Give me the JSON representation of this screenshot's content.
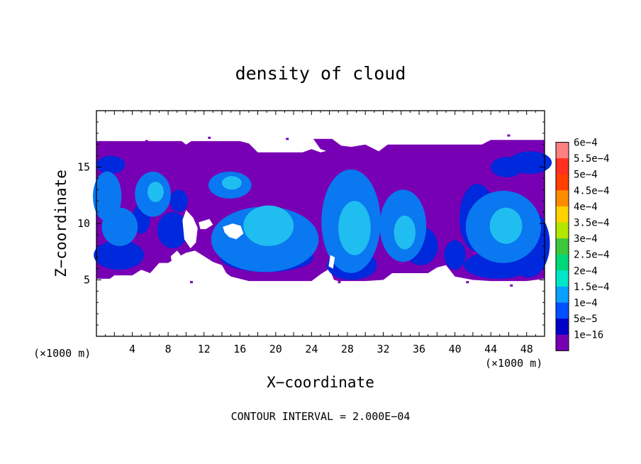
{
  "chart_data": {
    "type": "heatmap",
    "title": "density of cloud",
    "xlabel": "X−coordinate",
    "ylabel": "Z−coordinate",
    "x_unit_left": "(×1000 m)",
    "x_unit_right": "(×1000 m)",
    "footer": "CONTOUR INTERVAL = 2.000E−04",
    "xlim": [
      0,
      50
    ],
    "ylim": [
      0,
      20
    ],
    "x_ticks": [
      4,
      8,
      12,
      16,
      20,
      24,
      28,
      32,
      36,
      40,
      44,
      48
    ],
    "y_ticks": [
      5,
      10,
      15
    ],
    "colorbar": {
      "labels": [
        "6e−4",
        "5.5e−4",
        "5e−4",
        "4.5e−4",
        "4e−4",
        "3.5e−4",
        "3e−4",
        "2.5e−4",
        "2e−4",
        "1.5e−4",
        "1e−4",
        "5e−5",
        "1e−16"
      ],
      "colors": [
        "#ff8080",
        "#ff3020",
        "#ff4000",
        "#ff8c00",
        "#ffd200",
        "#b4e600",
        "#3cc83c",
        "#00d878",
        "#00e6c8",
        "#0aa0ff",
        "#0050ff",
        "#0000c8",
        "#7800b4"
      ]
    },
    "fill_levels": [
      5e-05,
      0.0001,
      0.00015
    ],
    "fill_colors": [
      "#7800b4",
      "#3010c8",
      "#0028dc",
      "#0a78f0",
      "#20bef0"
    ],
    "cloud_top": [
      [
        0,
        17.3
      ],
      [
        3,
        17.3
      ],
      [
        7,
        17.3
      ],
      [
        9.5,
        17.3
      ],
      [
        10,
        17.0
      ],
      [
        10.6,
        17.3
      ],
      [
        16,
        17.3
      ],
      [
        17,
        17.1
      ],
      [
        18,
        16.3
      ],
      [
        23,
        16.3
      ],
      [
        24,
        16.6
      ],
      [
        25,
        16.3
      ],
      [
        26,
        16.5
      ],
      [
        27,
        16.2
      ],
      [
        28.5,
        16.8
      ],
      [
        30,
        17.0
      ],
      [
        31.5,
        16.4
      ],
      [
        32.5,
        17.0
      ],
      [
        37,
        17.0
      ],
      [
        41,
        17.0
      ],
      [
        43,
        17.0
      ],
      [
        44,
        17.4
      ],
      [
        50,
        17.4
      ]
    ],
    "cloud_bottom": [
      [
        0,
        5.1
      ],
      [
        1.5,
        5.1
      ],
      [
        2,
        5.4
      ],
      [
        4,
        5.4
      ],
      [
        5,
        5.9
      ],
      [
        6,
        5.6
      ],
      [
        7,
        6.5
      ],
      [
        8,
        6.5
      ],
      [
        9,
        7.0
      ],
      [
        10,
        7.4
      ],
      [
        11,
        7.6
      ],
      [
        12,
        7.1
      ],
      [
        13,
        6.6
      ],
      [
        14,
        6.3
      ],
      [
        14.5,
        5.6
      ],
      [
        15,
        5.3
      ],
      [
        16,
        5.1
      ],
      [
        17,
        4.9
      ],
      [
        20,
        4.9
      ],
      [
        24,
        4.9
      ],
      [
        25,
        5.5
      ],
      [
        26,
        6.0
      ],
      [
        26.5,
        5.0
      ],
      [
        27,
        4.9
      ],
      [
        30,
        4.9
      ],
      [
        32,
        5.0
      ],
      [
        33,
        5.6
      ],
      [
        35,
        5.6
      ],
      [
        37,
        5.6
      ],
      [
        38,
        6.1
      ],
      [
        39,
        6.3
      ],
      [
        40,
        5.3
      ],
      [
        42,
        5.0
      ],
      [
        44,
        4.9
      ],
      [
        46,
        4.9
      ],
      [
        48,
        4.9
      ],
      [
        50,
        5.1
      ]
    ],
    "cloud_top_patches": [
      {
        "points": [
          [
            24.2,
            17.5
          ],
          [
            26.3,
            17.5
          ],
          [
            27.3,
            16.9
          ],
          [
            30.4,
            16.6
          ],
          [
            31.3,
            16.0
          ],
          [
            29.5,
            15.7
          ],
          [
            26.5,
            16.2
          ],
          [
            25.0,
            16.6
          ]
        ]
      }
    ],
    "holes": [
      {
        "points": [
          [
            10.0,
            11.2
          ],
          [
            10.8,
            10.5
          ],
          [
            11.3,
            9.6
          ],
          [
            11.1,
            8.3
          ],
          [
            10.5,
            7.8
          ],
          [
            9.8,
            8.6
          ],
          [
            9.6,
            10.3
          ]
        ]
      },
      {
        "points": [
          [
            11.4,
            10.1
          ],
          [
            12.6,
            10.4
          ],
          [
            13.0,
            9.9
          ],
          [
            12.2,
            9.5
          ],
          [
            11.6,
            9.5
          ]
        ]
      },
      {
        "points": [
          [
            14.1,
            9.7
          ],
          [
            15.2,
            10.0
          ],
          [
            16.1,
            9.8
          ],
          [
            16.4,
            9.1
          ],
          [
            15.6,
            8.6
          ],
          [
            14.8,
            8.8
          ],
          [
            14.3,
            9.2
          ]
        ]
      },
      {
        "points": [
          [
            8.3,
            7.1
          ],
          [
            9.0,
            7.6
          ],
          [
            9.4,
            7.2
          ],
          [
            9.0,
            6.6
          ],
          [
            8.4,
            6.6
          ]
        ]
      },
      {
        "points": [
          [
            26.1,
            7.2
          ],
          [
            26.6,
            7.0
          ],
          [
            26.4,
            6.0
          ],
          [
            25.9,
            6.2
          ]
        ]
      }
    ],
    "blobs": [
      {
        "x": 18.8,
        "z": 8.6,
        "rx": 6.0,
        "rz": 2.9,
        "val": 0.00012,
        "rot": 0
      },
      {
        "x": 19.2,
        "z": 9.8,
        "rx": 2.8,
        "rz": 1.8,
        "val": 0.00018,
        "rot": 0
      },
      {
        "x": 19.0,
        "z": 7.0,
        "rx": 5.2,
        "rz": 1.3,
        "val": 9e-05,
        "rot": 0
      },
      {
        "x": 28.4,
        "z": 10.2,
        "rx": 3.3,
        "rz": 4.6,
        "val": 0.00013,
        "rot": 0
      },
      {
        "x": 28.8,
        "z": 9.6,
        "rx": 1.8,
        "rz": 2.4,
        "val": 0.00019,
        "rot": 0
      },
      {
        "x": 28.5,
        "z": 6.3,
        "rx": 2.8,
        "rz": 1.3,
        "val": 8e-05,
        "rot": 0
      },
      {
        "x": 34.2,
        "z": 9.8,
        "rx": 2.6,
        "rz": 3.2,
        "val": 0.00012,
        "rot": 0
      },
      {
        "x": 34.4,
        "z": 9.2,
        "rx": 1.2,
        "rz": 1.5,
        "val": 0.00016,
        "rot": 0
      },
      {
        "x": 36.2,
        "z": 8.0,
        "rx": 1.9,
        "rz": 1.7,
        "val": 8e-05,
        "rot": 0
      },
      {
        "x": 45.4,
        "z": 9.7,
        "rx": 4.2,
        "rz": 3.2,
        "val": 0.00013,
        "rot": 0
      },
      {
        "x": 45.7,
        "z": 9.8,
        "rx": 1.8,
        "rz": 1.6,
        "val": 0.00019,
        "rot": 0
      },
      {
        "x": 48.2,
        "z": 8.2,
        "rx": 2.4,
        "rz": 3.0,
        "val": 9e-05,
        "rot": 0
      },
      {
        "x": 42.5,
        "z": 10.5,
        "rx": 2.0,
        "rz": 3.0,
        "val": 8e-05,
        "rot": 0
      },
      {
        "x": 40.0,
        "z": 7.2,
        "rx": 1.2,
        "rz": 1.3,
        "val": 7e-05,
        "rot": 0
      },
      {
        "x": 44.8,
        "z": 6.3,
        "rx": 3.8,
        "rz": 1.2,
        "val": 8e-05,
        "rot": 0
      },
      {
        "x": 48.4,
        "z": 15.4,
        "rx": 2.4,
        "rz": 1.0,
        "val": 8e-05,
        "rot": 0
      },
      {
        "x": 45.8,
        "z": 15.0,
        "rx": 1.8,
        "rz": 0.9,
        "val": 7e-05,
        "rot": 0
      },
      {
        "x": 14.9,
        "z": 13.4,
        "rx": 2.4,
        "rz": 1.2,
        "val": 0.0001,
        "rot": 0
      },
      {
        "x": 15.1,
        "z": 13.6,
        "rx": 1.1,
        "rz": 0.6,
        "val": 0.00015,
        "rot": 0
      },
      {
        "x": 1.2,
        "z": 12.4,
        "rx": 1.6,
        "rz": 2.2,
        "val": 0.0001,
        "rot": 0
      },
      {
        "x": 2.6,
        "z": 9.7,
        "rx": 2.0,
        "rz": 1.7,
        "val": 0.00011,
        "rot": 0
      },
      {
        "x": 6.3,
        "z": 12.6,
        "rx": 2.0,
        "rz": 2.0,
        "val": 0.00011,
        "rot": 0
      },
      {
        "x": 6.6,
        "z": 12.8,
        "rx": 0.9,
        "rz": 0.9,
        "val": 0.00016,
        "rot": 0
      },
      {
        "x": 8.5,
        "z": 9.4,
        "rx": 1.7,
        "rz": 1.6,
        "val": 9e-05,
        "rot": 0
      },
      {
        "x": 2.5,
        "z": 7.2,
        "rx": 2.8,
        "rz": 1.3,
        "val": 8e-05,
        "rot": 0
      },
      {
        "x": 1.6,
        "z": 15.2,
        "rx": 1.6,
        "rz": 0.8,
        "val": 7e-05,
        "rot": 0
      },
      {
        "x": 5.0,
        "z": 10.4,
        "rx": 1.0,
        "rz": 1.3,
        "val": 7e-05,
        "rot": 0
      },
      {
        "x": 9.2,
        "z": 12.0,
        "rx": 1.0,
        "rz": 1.0,
        "val": 7e-05,
        "rot": 0
      }
    ],
    "specks": [
      {
        "x": 5.6,
        "z": 17.3
      },
      {
        "x": 12.6,
        "z": 17.6
      },
      {
        "x": 21.3,
        "z": 17.5
      },
      {
        "x": 46.0,
        "z": 17.8
      },
      {
        "x": 15.9,
        "z": 17.0
      },
      {
        "x": 10.6,
        "z": 4.8
      },
      {
        "x": 27.1,
        "z": 4.8
      },
      {
        "x": 41.4,
        "z": 4.8
      },
      {
        "x": 46.3,
        "z": 4.5
      }
    ]
  }
}
